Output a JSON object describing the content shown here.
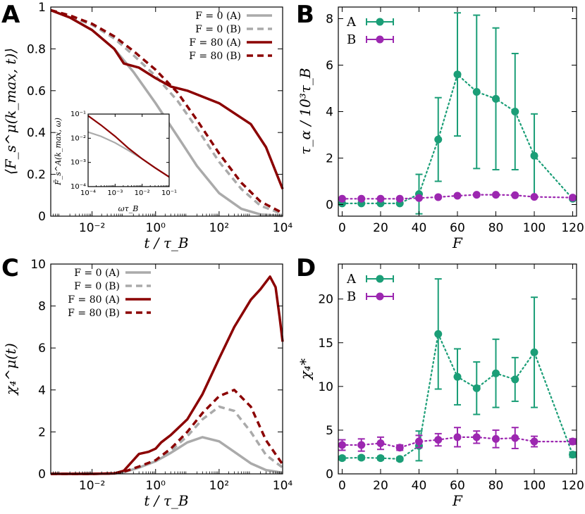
{
  "colors": {
    "F0": "#aaaaaa",
    "F80": "#8b0000",
    "A": "#1b9e77",
    "B": "#9c27b0"
  },
  "chart_data": [
    {
      "id": "A",
      "panel_label": "A",
      "type": "line",
      "xscale": "log",
      "xlim": [
        0.0005,
        10000
      ],
      "ylim": [
        0,
        1
      ],
      "xlabel": "t / τ_B",
      "ylabel": "⟨F_s^μ(k_max, t)⟩",
      "xtick_values": [
        0.01,
        1,
        100,
        10000
      ],
      "xtick_labels": [
        "10⁻²",
        "10⁰",
        "10²",
        "10⁴"
      ],
      "ytick_values": [
        0,
        0.2,
        0.4,
        0.6,
        0.8,
        1
      ],
      "ytick_labels": [
        "0",
        "0.2",
        "0.4",
        "0.6",
        "0.8",
        "1"
      ],
      "legend_position": "top-right",
      "series": [
        {
          "name": "F = 0 (A)",
          "style": "solid",
          "color": "#aaaaaa",
          "x": [
            0.0005,
            0.002,
            0.01,
            0.05,
            0.2,
            1,
            5,
            20,
            100,
            500,
            2000,
            10000
          ],
          "y": [
            0.985,
            0.95,
            0.89,
            0.8,
            0.69,
            0.54,
            0.38,
            0.24,
            0.11,
            0.035,
            0.008,
            0.001
          ]
        },
        {
          "name": "F = 0 (B)",
          "style": "dashed",
          "color": "#aaaaaa",
          "x": [
            0.0005,
            0.002,
            0.01,
            0.05,
            0.2,
            1,
            5,
            20,
            100,
            500,
            2000,
            10000
          ],
          "y": [
            0.985,
            0.955,
            0.915,
            0.85,
            0.77,
            0.67,
            0.55,
            0.42,
            0.26,
            0.13,
            0.05,
            0.01
          ]
        },
        {
          "name": "F = 80 (A)",
          "style": "solid",
          "color": "#8b0000",
          "x": [
            0.0005,
            0.002,
            0.01,
            0.05,
            0.1,
            0.3,
            1,
            3,
            10,
            100,
            1000,
            3000,
            10000
          ],
          "y": [
            0.985,
            0.95,
            0.89,
            0.8,
            0.73,
            0.71,
            0.66,
            0.62,
            0.6,
            0.54,
            0.44,
            0.33,
            0.13
          ]
        },
        {
          "name": "F = 80 (B)",
          "style": "dashed",
          "color": "#8b0000",
          "x": [
            0.0005,
            0.002,
            0.01,
            0.05,
            0.2,
            1,
            5,
            20,
            100,
            500,
            2000,
            10000
          ],
          "y": [
            0.985,
            0.96,
            0.92,
            0.86,
            0.79,
            0.7,
            0.59,
            0.46,
            0.3,
            0.16,
            0.07,
            0.015
          ]
        }
      ],
      "inset": {
        "type": "line",
        "xscale": "log",
        "yscale": "log",
        "xlim": [
          0.0001,
          0.1
        ],
        "ylim": [
          0.0001,
          0.1
        ],
        "xlabel": "ωτ_B",
        "ylabel": "F̃_s^A(k_max, ω)",
        "xtick_values": [
          0.0001,
          0.001,
          0.01,
          0.1
        ],
        "xtick_labels": [
          "10⁻⁴",
          "10⁻³",
          "10⁻²",
          "10⁻¹"
        ],
        "ytick_values": [
          0.0001,
          0.001,
          0.01,
          0.1
        ],
        "ytick_labels": [
          "10⁻⁴",
          "10⁻³",
          "10⁻²",
          "10⁻¹"
        ],
        "series": [
          {
            "name": "F = 0",
            "color": "#aaaaaa",
            "x": [
              0.0001,
              0.0003,
              0.001,
              0.003,
              0.01,
              0.03,
              0.1
            ],
            "y": [
              0.018,
              0.012,
              0.0065,
              0.0032,
              0.0014,
              0.0006,
              0.00025
            ]
          },
          {
            "name": "F = 80",
            "color": "#8b0000",
            "x": [
              0.0001,
              0.0003,
              0.001,
              0.003,
              0.01,
              0.03,
              0.1
            ],
            "y": [
              0.085,
              0.035,
              0.012,
              0.004,
              0.0014,
              0.0006,
              0.00025
            ]
          }
        ]
      }
    },
    {
      "id": "B",
      "panel_label": "B",
      "type": "scatter",
      "xlim": [
        -2,
        122
      ],
      "ylim": [
        -0.5,
        8.5
      ],
      "xlabel": "F",
      "ylabel": "τ_α / 10³τ_B",
      "xtick_values": [
        0,
        20,
        40,
        60,
        80,
        100,
        120
      ],
      "xtick_labels": [
        "0",
        "20",
        "40",
        "60",
        "80",
        "100",
        "120"
      ],
      "ytick_values": [
        0,
        2,
        4,
        6,
        8
      ],
      "ytick_labels": [
        "0",
        "2",
        "4",
        "6",
        "8"
      ],
      "legend_position": "top-left",
      "series": [
        {
          "name": "A",
          "color": "#1b9e77",
          "x": [
            0,
            10,
            20,
            30,
            40,
            50,
            60,
            70,
            80,
            90,
            100,
            120
          ],
          "y": [
            0.05,
            0.05,
            0.05,
            0.05,
            0.45,
            2.8,
            5.6,
            4.85,
            4.55,
            4.0,
            2.1,
            0.25
          ],
          "err": [
            0.02,
            0.02,
            0.02,
            0.02,
            0.85,
            1.8,
            2.65,
            3.3,
            3.05,
            2.5,
            1.8,
            0.05
          ]
        },
        {
          "name": "B",
          "color": "#9c27b0",
          "x": [
            0,
            10,
            20,
            30,
            40,
            50,
            60,
            70,
            80,
            90,
            100,
            120
          ],
          "y": [
            0.25,
            0.25,
            0.25,
            0.25,
            0.28,
            0.32,
            0.38,
            0.42,
            0.42,
            0.4,
            0.33,
            0.3
          ],
          "err": [
            0.03,
            0.03,
            0.03,
            0.03,
            0.03,
            0.03,
            0.03,
            0.03,
            0.03,
            0.03,
            0.03,
            0.03
          ]
        }
      ]
    },
    {
      "id": "C",
      "panel_label": "C",
      "type": "line",
      "xscale": "log",
      "xlim": [
        0.0005,
        10000
      ],
      "ylim": [
        0,
        10
      ],
      "xlabel": "t / τ_B",
      "ylabel": "χ₄^μ(t)",
      "xtick_values": [
        0.01,
        1,
        100,
        10000
      ],
      "xtick_labels": [
        "10⁻²",
        "10⁰",
        "10²",
        "10⁴"
      ],
      "ytick_values": [
        0,
        2,
        4,
        6,
        8,
        10
      ],
      "ytick_labels": [
        "0",
        "2",
        "4",
        "6",
        "8",
        "10"
      ],
      "legend_position": "top-left",
      "series": [
        {
          "name": "F = 0 (A)",
          "style": "solid",
          "color": "#aaaaaa",
          "x": [
            0.0005,
            0.01,
            0.05,
            0.1,
            0.3,
            1,
            3,
            10,
            30,
            100,
            300,
            1000,
            3000,
            10000
          ],
          "y": [
            0,
            0,
            0.02,
            0.08,
            0.3,
            0.6,
            1.0,
            1.5,
            1.75,
            1.55,
            1.05,
            0.5,
            0.18,
            0.05
          ]
        },
        {
          "name": "F = 0 (B)",
          "style": "dashed",
          "color": "#aaaaaa",
          "x": [
            0.0005,
            0.01,
            0.05,
            0.1,
            0.3,
            1,
            3,
            10,
            30,
            100,
            300,
            1000,
            3000,
            10000
          ],
          "y": [
            0,
            0,
            0.02,
            0.08,
            0.3,
            0.6,
            1.1,
            1.8,
            2.6,
            3.2,
            3.0,
            2.0,
            0.9,
            0.3
          ]
        },
        {
          "name": "F = 80 (A)",
          "style": "solid",
          "color": "#8b0000",
          "x": [
            0.0005,
            0.01,
            0.05,
            0.1,
            0.3,
            0.6,
            1,
            1.5,
            3,
            10,
            30,
            100,
            300,
            1000,
            2000,
            4000,
            6000,
            8000,
            10000
          ],
          "y": [
            0,
            0,
            0.02,
            0.15,
            0.95,
            1.05,
            1.2,
            1.5,
            1.85,
            2.6,
            3.8,
            5.5,
            7.0,
            8.3,
            8.8,
            9.4,
            8.9,
            7.5,
            6.3
          ]
        },
        {
          "name": "F = 80 (B)",
          "style": "dashed",
          "color": "#8b0000",
          "x": [
            0.0005,
            0.01,
            0.05,
            0.1,
            0.3,
            1,
            3,
            10,
            30,
            100,
            300,
            1000,
            3000,
            10000
          ],
          "y": [
            0,
            0,
            0.02,
            0.1,
            0.35,
            0.65,
            1.2,
            2.0,
            2.9,
            3.7,
            4.0,
            3.2,
            1.6,
            0.45
          ]
        }
      ]
    },
    {
      "id": "D",
      "panel_label": "D",
      "type": "scatter",
      "xlim": [
        -2,
        122
      ],
      "ylim": [
        0,
        24
      ],
      "xlabel": "F",
      "ylabel": "χ₄*",
      "xtick_values": [
        0,
        20,
        40,
        60,
        80,
        100,
        120
      ],
      "xtick_labels": [
        "0",
        "20",
        "40",
        "60",
        "80",
        "100",
        "120"
      ],
      "ytick_values": [
        0,
        5,
        10,
        15,
        20
      ],
      "ytick_labels": [
        "0",
        "5",
        "10",
        "15",
        "20"
      ],
      "legend_position": "top-left",
      "series": [
        {
          "name": "A",
          "color": "#1b9e77",
          "x": [
            0,
            10,
            20,
            30,
            40,
            50,
            60,
            70,
            80,
            90,
            100,
            120
          ],
          "y": [
            1.8,
            1.85,
            1.8,
            1.7,
            3.2,
            16.0,
            11.1,
            9.8,
            11.5,
            10.8,
            13.9,
            2.2
          ],
          "err": [
            0.2,
            0.2,
            0.2,
            0.2,
            1.7,
            6.3,
            3.2,
            3.0,
            3.9,
            2.5,
            6.3,
            0.3
          ]
        },
        {
          "name": "B",
          "color": "#9c27b0",
          "x": [
            0,
            10,
            20,
            30,
            40,
            50,
            60,
            70,
            80,
            90,
            100,
            120
          ],
          "y": [
            3.3,
            3.3,
            3.5,
            3.0,
            3.7,
            3.9,
            4.2,
            4.2,
            4.0,
            4.1,
            3.7,
            3.7
          ],
          "err": [
            0.6,
            0.7,
            0.7,
            0.3,
            0.7,
            0.7,
            1.1,
            0.7,
            1.0,
            1.2,
            0.6,
            0.3
          ]
        }
      ]
    }
  ]
}
